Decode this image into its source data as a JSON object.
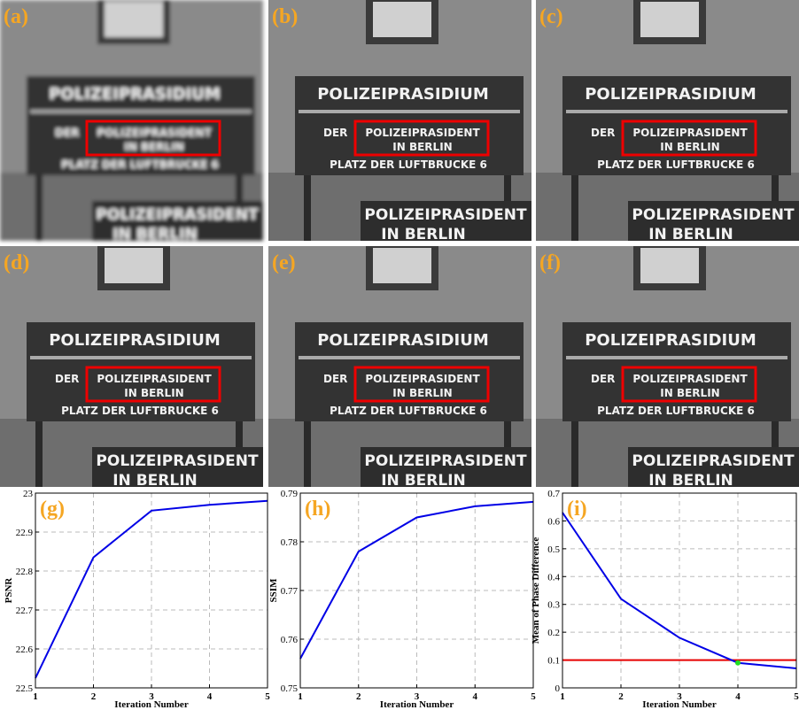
{
  "panels": [
    {
      "label": "(a)",
      "blur": true
    },
    {
      "label": "(b)",
      "blur": false
    },
    {
      "label": "(c)",
      "blur": false
    },
    {
      "label": "(d)",
      "blur": false
    },
    {
      "label": "(e)",
      "blur": false
    },
    {
      "label": "(f)",
      "blur": false
    }
  ],
  "sign": {
    "title": "POLIZEIPRASIDIUM",
    "prefix": "DER",
    "line1": "POLIZEIPRASIDENT",
    "line2": "IN BERLIN",
    "line3": "PLATZ DER LUFTBRUCKE 6"
  },
  "chart_data": [
    {
      "type": "line",
      "label": "(g)",
      "ylabel": "PSNR",
      "xlabel": "Iteration Number",
      "x": [
        1,
        2,
        3,
        4,
        5
      ],
      "xlim": [
        1,
        5
      ],
      "xticks": [
        1,
        2,
        3,
        4,
        5
      ],
      "ylim": [
        22.5,
        23
      ],
      "yticks": [
        22.5,
        22.6,
        22.7,
        22.8,
        22.9,
        23
      ],
      "grid": true,
      "series": [
        {
          "color": "#0000e6",
          "values": [
            22.525,
            22.835,
            22.955,
            22.97,
            22.98
          ]
        }
      ]
    },
    {
      "type": "line",
      "label": "(h)",
      "ylabel": "SSIM",
      "xlabel": "Iteration Number",
      "x": [
        1,
        2,
        3,
        4,
        5
      ],
      "xlim": [
        1,
        5
      ],
      "xticks": [
        1,
        2,
        3,
        4,
        5
      ],
      "ylim": [
        0.75,
        0.79
      ],
      "yticks": [
        0.75,
        0.76,
        0.77,
        0.78,
        0.79
      ],
      "grid": true,
      "series": [
        {
          "color": "#0000e6",
          "values": [
            0.756,
            0.778,
            0.785,
            0.7873,
            0.7882
          ]
        }
      ]
    },
    {
      "type": "line",
      "label": "(i)",
      "ylabel": "Mean of Phase Difference",
      "xlabel": "Iteration Number",
      "x": [
        1,
        2,
        3,
        4,
        5
      ],
      "xlim": [
        1,
        5
      ],
      "xticks": [
        1,
        2,
        3,
        4,
        5
      ],
      "ylim": [
        0,
        0.7
      ],
      "yticks": [
        0,
        0.1,
        0.2,
        0.3,
        0.4,
        0.5,
        0.6,
        0.7
      ],
      "grid": true,
      "series": [
        {
          "color": "#0000e6",
          "values": [
            0.63,
            0.32,
            0.18,
            0.09,
            0.07
          ]
        }
      ],
      "threshold": {
        "value": 0.1,
        "color": "#e60000"
      },
      "highlight": {
        "x": 4,
        "color": "#22dd22"
      }
    }
  ]
}
